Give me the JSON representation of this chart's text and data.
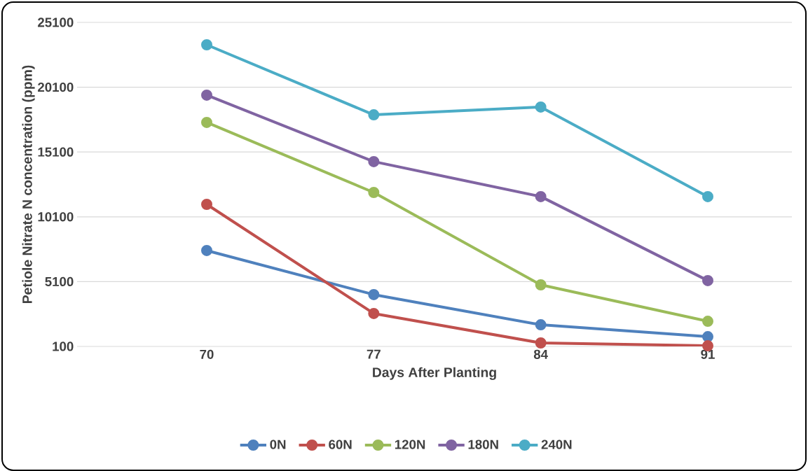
{
  "chart_data": {
    "type": "line",
    "xlabel": "Days After Planting",
    "ylabel": "Petiole Nitrate N concentration (ppm)",
    "categories": [
      "70",
      "77",
      "84",
      "91"
    ],
    "series": [
      {
        "name": "0N",
        "color": "#4f81bd",
        "values": [
          7500,
          4100,
          1770,
          850
        ]
      },
      {
        "name": "60N",
        "color": "#c0504d",
        "values": [
          11060,
          2640,
          370,
          150
        ]
      },
      {
        "name": "120N",
        "color": "#9bbb59",
        "values": [
          17380,
          11980,
          4850,
          2040
        ]
      },
      {
        "name": "180N",
        "color": "#8064a2",
        "values": [
          19490,
          14360,
          11660,
          5180
        ]
      },
      {
        "name": "240N",
        "color": "#4bacc6",
        "values": [
          23370,
          17970,
          18570,
          11660
        ]
      }
    ],
    "ylim": [
      100,
      25100
    ],
    "yticks": [
      100,
      5100,
      10100,
      15100,
      20100,
      25100
    ],
    "grid": "y",
    "legend": "bottom",
    "marker": "circle",
    "line_style": "solid"
  }
}
